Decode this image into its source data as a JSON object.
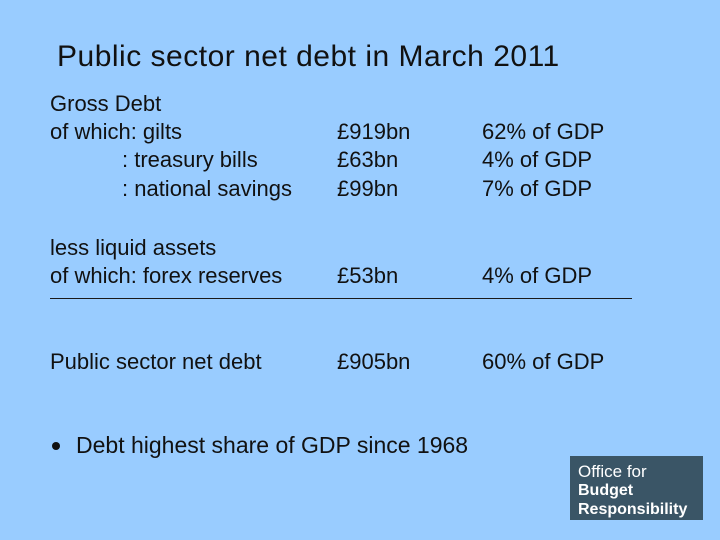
{
  "title": "Public sector net debt in March 2011",
  "table": {
    "gross_debt_label": "Gross Debt",
    "gilts": {
      "label": "of which: gilts",
      "amount": "£919bn",
      "share": "62% of GDP"
    },
    "treasury_bills": {
      "label": ": treasury bills",
      "amount": "£63bn",
      "share": "4% of GDP"
    },
    "national_savings": {
      "label": ":  national savings",
      "amount": "£99bn",
      "share": "7% of GDP"
    },
    "liquid_assets_label": "less liquid assets",
    "forex_reserves": {
      "label": "of which: forex reserves",
      "amount": "£53bn",
      "share": "4% of GDP"
    },
    "net_debt": {
      "label": "Public sector net debt",
      "amount": "£905bn",
      "share": "60% of GDP"
    }
  },
  "bullet": "Debt highest share of GDP since 1968",
  "logo": {
    "line1": "Office for",
    "line2": "Budget",
    "line3": "Responsibility"
  }
}
